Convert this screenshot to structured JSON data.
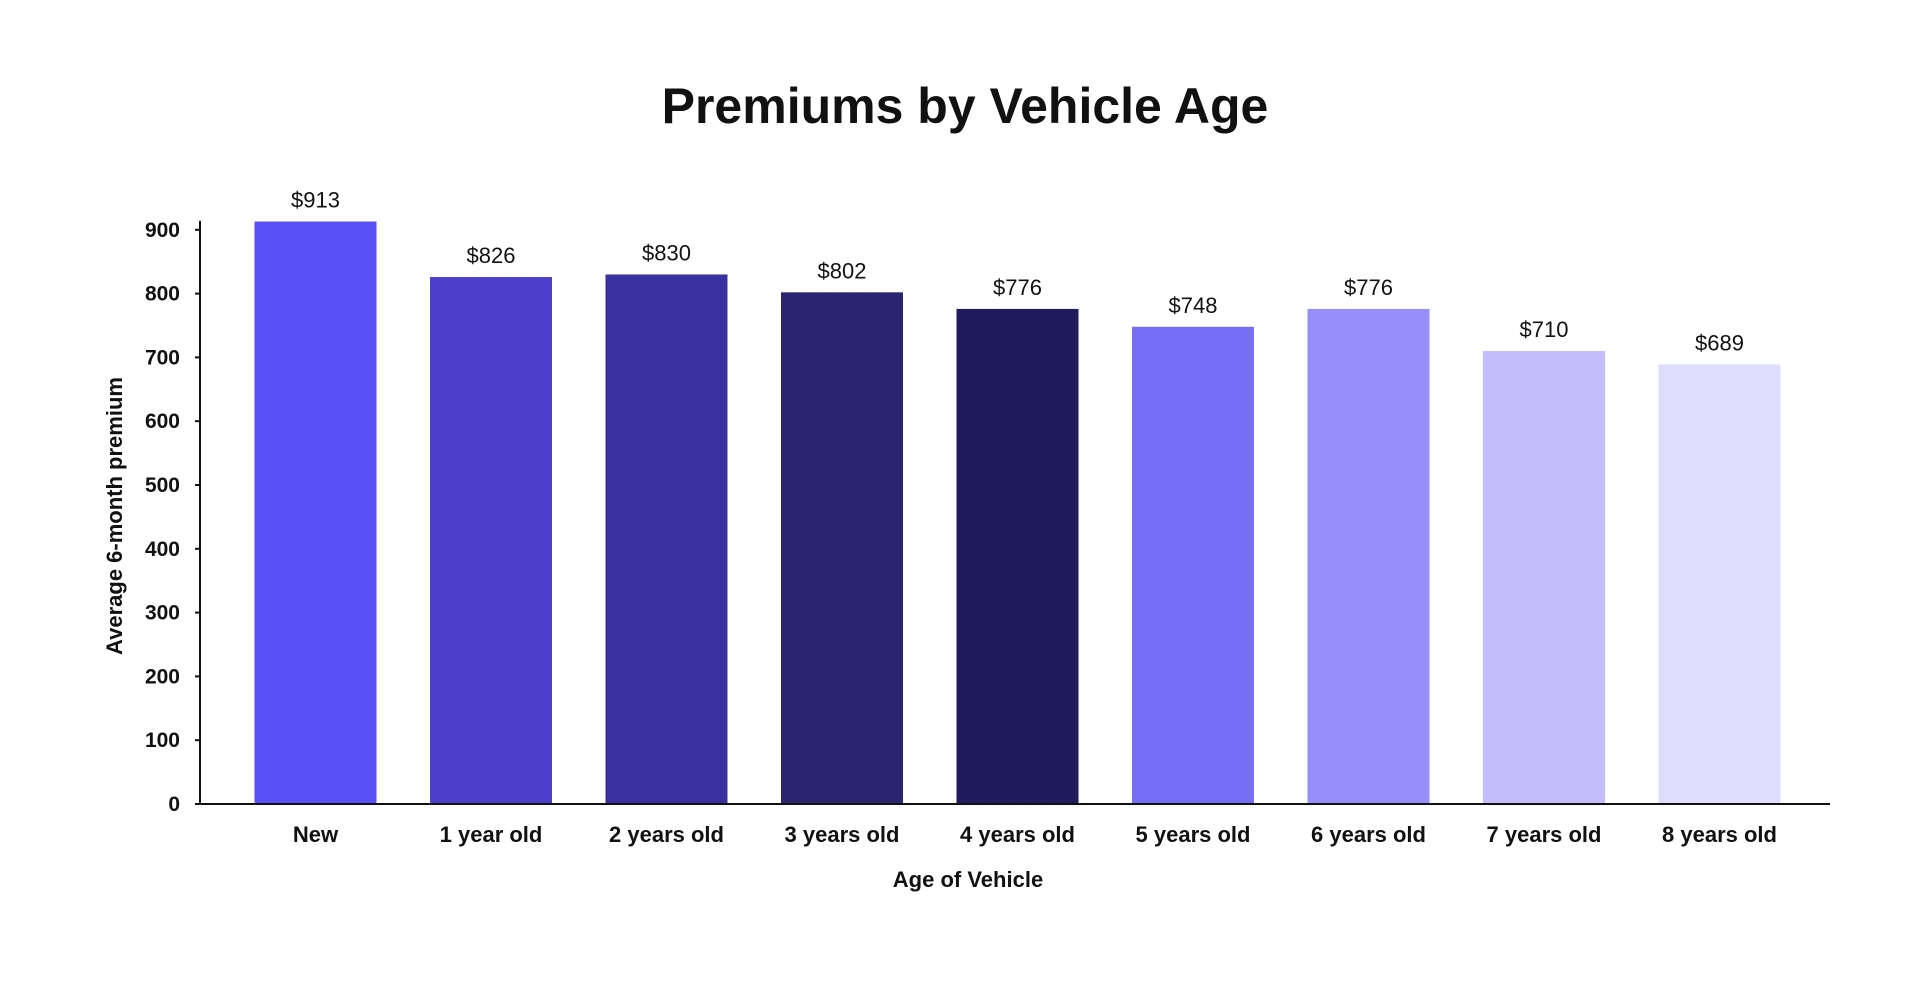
{
  "chart_data": {
    "type": "bar",
    "title": "Premiums by Vehicle Age",
    "xlabel": "Age of Vehicle",
    "ylabel": "Average 6-month premium",
    "ylim": [
      0,
      900
    ],
    "yticks": [
      0,
      100,
      200,
      300,
      400,
      500,
      600,
      700,
      800,
      900
    ],
    "categories": [
      "New",
      "1 year old",
      "2 years old",
      "3 years old",
      "4 years old",
      "5 years old",
      "6 years old",
      "7 years old",
      "8 years old"
    ],
    "values": [
      913,
      826,
      830,
      802,
      776,
      748,
      776,
      710,
      689
    ],
    "data_labels": [
      "$913",
      "$826",
      "$830",
      "$802",
      "$776",
      "$748",
      "$776",
      "$710",
      "$689"
    ],
    "colors": [
      "#5a4ff8",
      "#4a40cc",
      "#3a31a0",
      "#2b246f",
      "#201b5a",
      "#766ff6",
      "#958ff9",
      "#c3befb",
      "#dfddfd"
    ],
    "grid": false,
    "legend": "none"
  }
}
